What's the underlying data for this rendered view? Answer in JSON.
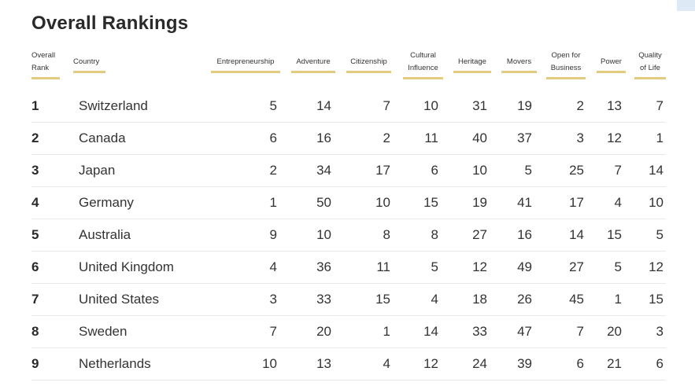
{
  "title": "Overall Rankings",
  "chart_data": {
    "type": "table",
    "columns": [
      {
        "key": "rank",
        "lines": [
          "Overall",
          "Rank"
        ]
      },
      {
        "key": "country",
        "lines": [
          "Country"
        ]
      },
      {
        "key": "entrepreneurship",
        "lines": [
          "Entrepreneurship"
        ]
      },
      {
        "key": "adventure",
        "lines": [
          "Adventure"
        ]
      },
      {
        "key": "citizenship",
        "lines": [
          "Citizenship"
        ]
      },
      {
        "key": "cultural_influence",
        "lines": [
          "Cultural",
          "Influence"
        ]
      },
      {
        "key": "heritage",
        "lines": [
          "Heritage"
        ]
      },
      {
        "key": "movers",
        "lines": [
          "Movers"
        ]
      },
      {
        "key": "open_for_business",
        "lines": [
          "Open for",
          "Business"
        ]
      },
      {
        "key": "power",
        "lines": [
          "Power"
        ]
      },
      {
        "key": "quality_of_life",
        "lines": [
          "Quality",
          "of Life"
        ]
      }
    ],
    "rows": [
      {
        "rank": "1",
        "country": "Switzerland",
        "scores": [
          5,
          14,
          7,
          10,
          31,
          19,
          2,
          13,
          7
        ]
      },
      {
        "rank": "2",
        "country": "Canada",
        "scores": [
          6,
          16,
          2,
          11,
          40,
          37,
          3,
          12,
          1
        ]
      },
      {
        "rank": "3",
        "country": "Japan",
        "scores": [
          2,
          34,
          17,
          6,
          10,
          5,
          25,
          7,
          14
        ]
      },
      {
        "rank": "4",
        "country": "Germany",
        "scores": [
          1,
          50,
          10,
          15,
          19,
          41,
          17,
          4,
          10
        ]
      },
      {
        "rank": "5",
        "country": "Australia",
        "scores": [
          9,
          10,
          8,
          8,
          27,
          16,
          14,
          15,
          5
        ]
      },
      {
        "rank": "6",
        "country": "United Kingdom",
        "scores": [
          4,
          36,
          11,
          5,
          12,
          49,
          27,
          5,
          12
        ]
      },
      {
        "rank": "7",
        "country": "United States",
        "scores": [
          3,
          33,
          15,
          4,
          18,
          26,
          45,
          1,
          15
        ]
      },
      {
        "rank": "8",
        "country": "Sweden",
        "scores": [
          7,
          20,
          1,
          14,
          33,
          47,
          7,
          20,
          3
        ]
      },
      {
        "rank": "9",
        "country": "Netherlands",
        "scores": [
          10,
          13,
          4,
          12,
          24,
          39,
          6,
          21,
          6
        ]
      }
    ]
  },
  "colors": {
    "header_underline": "#e3cc80",
    "row_divider": "#e8e8e8",
    "text": "#333333",
    "corner_tab": "#dde9f5"
  }
}
